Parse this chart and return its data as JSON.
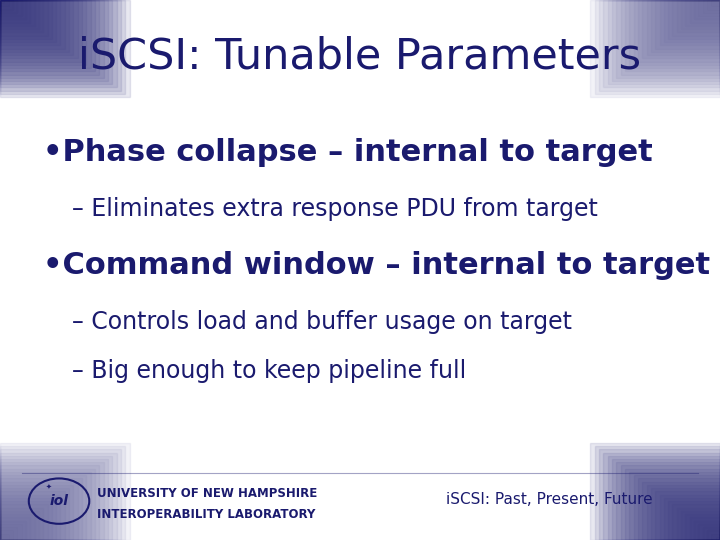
{
  "title_display": "iSCSI: Tunable Parameters",
  "bg_color": "#ffffff",
  "border_color": "#1a1a6e",
  "text_color": "#1a1a6e",
  "bullet1": "•Phase collapse – internal to target",
  "sub1": "– Eliminates extra response PDU from target",
  "bullet2": "•Command window – internal to target",
  "sub2a": "– Controls load and buffer usage on target",
  "sub2b": "– Big enough to keep pipeline full",
  "footer_left1": "University of New Hampshire",
  "footer_left2": "InterOperability Laboratory",
  "footer_right": "iSCSI: Past, Present, Future",
  "bullet_fontsize": 22,
  "sub_fontsize": 17,
  "title_fontsize": 31,
  "footer_fontsize": 8.5
}
